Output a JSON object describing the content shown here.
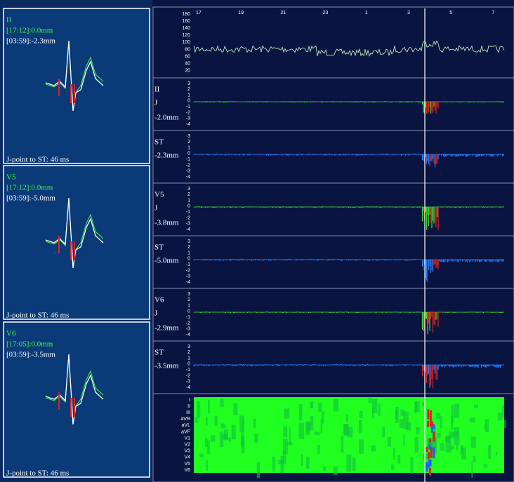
{
  "left_panels": [
    {
      "lead": "II",
      "ref": "[17:12]:0.0mm",
      "cur": "[03:59]:-2.3mm",
      "footer": "J-point to ST: 46 ms"
    },
    {
      "lead": "V5",
      "ref": "[17:12]:0.0mm",
      "cur": "[03:59]:-5.0mm",
      "footer": "J-point to ST: 46 ms"
    },
    {
      "lead": "V6",
      "ref": "[17:05]:0.0mm",
      "cur": "[03:59]:-3.5mm",
      "footer": "J-point to ST: 46 ms"
    }
  ],
  "trend": {
    "time_labels": [
      "17",
      "19",
      "21",
      "23",
      "1",
      "3",
      "5",
      "7"
    ],
    "hr_ticks": [
      180,
      160,
      140,
      120,
      100,
      80,
      60,
      40,
      20
    ],
    "strip_ticks": [
      3,
      2,
      1,
      0,
      -1,
      -2,
      -3,
      -4
    ],
    "strips": [
      {
        "label": "II",
        "sub": "J",
        "value": "-2.0mm"
      },
      {
        "label": "ST",
        "value": "-2.3mm"
      },
      {
        "label": "V5",
        "sub": "J",
        "value": "-3.8mm"
      },
      {
        "label": "ST",
        "value": "-5.0mm"
      },
      {
        "label": "V6",
        "sub": "J",
        "value": "-2.9mm"
      },
      {
        "label": "ST",
        "value": "-3.5mm"
      }
    ],
    "leads": [
      "I",
      "II",
      "III",
      "aVR",
      "aVL",
      "aVF",
      "V1",
      "V2",
      "V3",
      "V4",
      "V5",
      "V6"
    ]
  }
}
